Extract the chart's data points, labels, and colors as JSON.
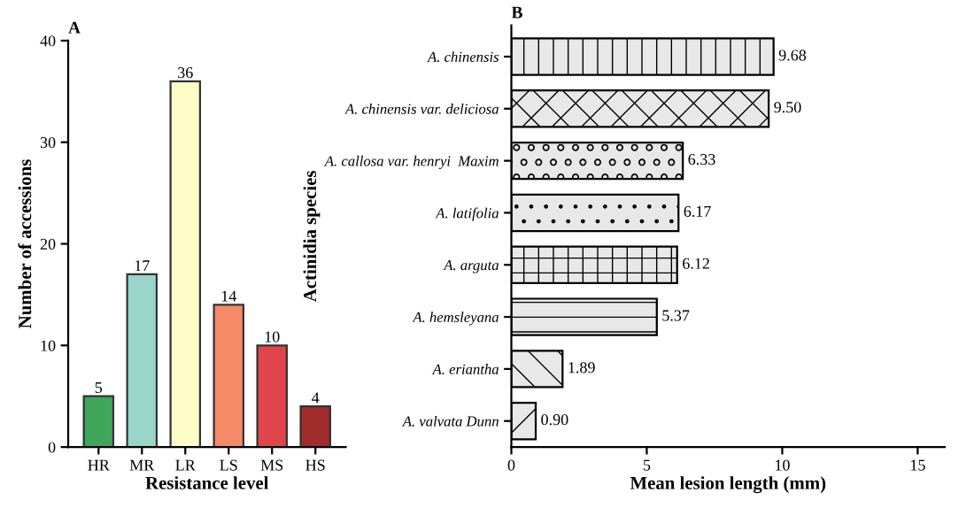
{
  "chart_data": [
    {
      "type": "bar",
      "title": "A",
      "xlabel": "Resistance level",
      "ylabel": "Number of accessions",
      "categories": [
        "HR",
        "MR",
        "LR",
        "LS",
        "MS",
        "HS"
      ],
      "values": [
        5,
        17,
        36,
        14,
        10,
        4
      ],
      "colors": [
        "#3fa65c",
        "#99d5c9",
        "#fefdc8",
        "#f48a68",
        "#e0454b",
        "#a02c2c"
      ],
      "ylim": [
        0,
        40
      ],
      "yticks": [
        0,
        10,
        20,
        30,
        40
      ],
      "data_labels": true,
      "grid": false,
      "legend": false
    },
    {
      "type": "bar",
      "orientation": "horizontal",
      "title": "B",
      "xlabel": "Mean lesion length (mm)",
      "ylabel": "Actinidia species",
      "categories": [
        "A. chinensis",
        "A. chinensis var. deliciosa",
        "A. callosa var. henryi  Maxim",
        "A. latifolia",
        "A. arguta",
        "A. hemsleyana",
        "A. eriantha",
        "A. valvata Dunn"
      ],
      "values": [
        9.68,
        9.5,
        6.33,
        6.17,
        6.12,
        5.37,
        1.89,
        0.9
      ],
      "color": "#e8e8e8",
      "value_labels": [
        "9.68",
        "9.50",
        "6.33",
        "6.17",
        "6.12",
        "5.37",
        "1.89",
        "0.90"
      ],
      "xlim": [
        0,
        16
      ],
      "xticks": [
        0,
        5,
        10,
        15
      ],
      "grid": false,
      "legend": false
    }
  ]
}
